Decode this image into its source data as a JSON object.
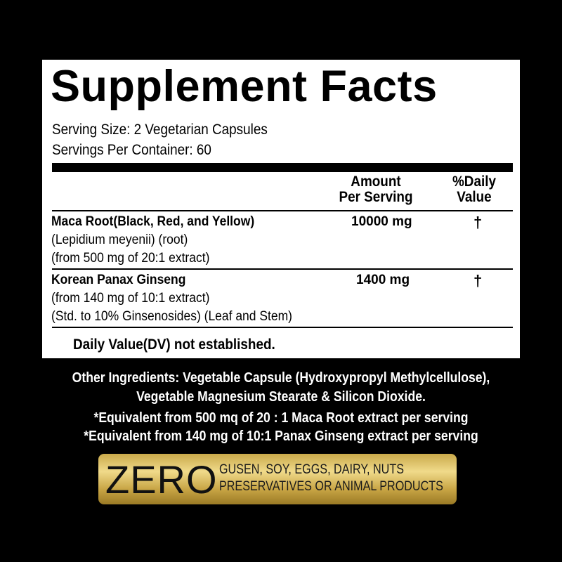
{
  "label": {
    "title": "Supplement Facts",
    "serving_size": "Serving Size: 2 Vegetarian Capsules",
    "servings_per_container": "Servings Per Container: 60",
    "headers": {
      "amount_line1": "Amount",
      "amount_line2": "Per Serving",
      "dv_line1": "%Daily",
      "dv_line2": "Value"
    },
    "rows": [
      {
        "name": "Maca Root(Black, Red, and Yellow)",
        "details": [
          "(Lepidium meyenii) (root)",
          "(from 500 mg of 20:1 extract)"
        ],
        "amount": "10000 mg",
        "dv": "†"
      },
      {
        "name": "Korean Panax Ginseng",
        "details": [
          "(from 140 mg of 10:1 extract)",
          "(Std. to 10% Ginsenosides) (Leaf and Stem)"
        ],
        "amount": "1400 mg",
        "dv": "†"
      }
    ],
    "footnote": "Daily Value(DV) not established."
  },
  "other": {
    "line1": "Other Ingredients: Vegetable Capsule (Hydroxypropyl Methylcellulose),",
    "line2": "Vegetable Magnesium Stearate & Silicon Dioxide.",
    "equiv1": "*Equivalent from 500 mq of 20 : 1 Maca Root extract per serving",
    "equiv2": "*Equivalent from 140 mg of 10:1 Panax Ginseng extract per serving"
  },
  "badge": {
    "zero": "ZERO",
    "line1": "GUSEN, SOY, EGGS, DAIRY, NUTS",
    "line2": "PRESERVATIVES OR ANIMAL PRODUCTS",
    "color": "#d4b55c"
  }
}
